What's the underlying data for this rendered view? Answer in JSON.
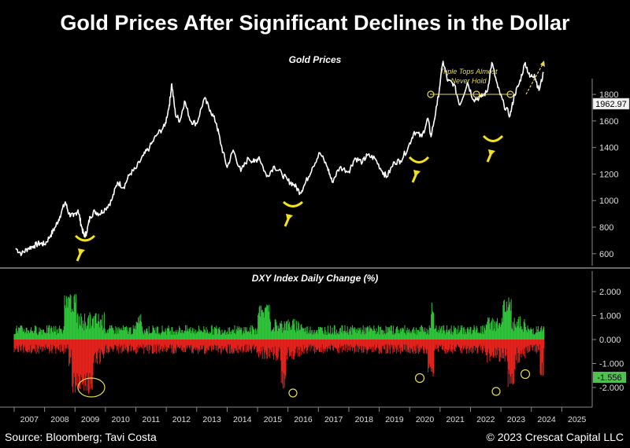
{
  "title": "Gold Prices After Significant Declines in the Dollar",
  "source": "Source: Bloomberg; Tavi Costa",
  "copyright": "© 2023 Crescat Capital LLC",
  "colors": {
    "gold_line": "#ffffff",
    "positive": "#2fc33a",
    "negative": "#e3221c",
    "annotation": "#e8d84a",
    "marker_arrow": "#f3e21b",
    "last_value_bg": "#4ec24e"
  },
  "chart_data": [
    {
      "type": "line",
      "title": "Gold Prices",
      "x_label_years": [
        "2007",
        "2008",
        "2009",
        "2010",
        "2011",
        "2012",
        "2013",
        "2014",
        "2015",
        "2016",
        "2017",
        "2018",
        "2019",
        "2020",
        "2021",
        "2022",
        "2023",
        "2024",
        "2025"
      ],
      "yticks": [
        600,
        800,
        1000,
        1200,
        1400,
        1600,
        1800
      ],
      "ylim": [
        510,
        1990
      ],
      "last_value_label": "1962.97",
      "points": [
        [
          2006.55,
          640
        ],
        [
          2006.75,
          600
        ],
        [
          2006.95,
          640
        ],
        [
          2007.15,
          660
        ],
        [
          2007.35,
          680
        ],
        [
          2007.5,
          670
        ],
        [
          2007.7,
          740
        ],
        [
          2007.85,
          800
        ],
        [
          2008.0,
          880
        ],
        [
          2008.18,
          990
        ],
        [
          2008.3,
          900
        ],
        [
          2008.45,
          880
        ],
        [
          2008.6,
          930
        ],
        [
          2008.7,
          820
        ],
        [
          2008.8,
          730
        ],
        [
          2008.88,
          760
        ],
        [
          2009.0,
          880
        ],
        [
          2009.15,
          920
        ],
        [
          2009.3,
          900
        ],
        [
          2009.5,
          940
        ],
        [
          2009.7,
          1000
        ],
        [
          2009.9,
          1140
        ],
        [
          2010.1,
          1100
        ],
        [
          2010.3,
          1200
        ],
        [
          2010.5,
          1240
        ],
        [
          2010.75,
          1340
        ],
        [
          2010.95,
          1400
        ],
        [
          2011.2,
          1500
        ],
        [
          2011.45,
          1560
        ],
        [
          2011.6,
          1720
        ],
        [
          2011.68,
          1880
        ],
        [
          2011.8,
          1650
        ],
        [
          2011.95,
          1600
        ],
        [
          2012.1,
          1750
        ],
        [
          2012.3,
          1600
        ],
        [
          2012.5,
          1580
        ],
        [
          2012.75,
          1770
        ],
        [
          2012.95,
          1680
        ],
        [
          2013.15,
          1580
        ],
        [
          2013.3,
          1420
        ],
        [
          2013.5,
          1250
        ],
        [
          2013.7,
          1380
        ],
        [
          2013.95,
          1220
        ],
        [
          2014.2,
          1320
        ],
        [
          2014.4,
          1290
        ],
        [
          2014.55,
          1330
        ],
        [
          2014.8,
          1180
        ],
        [
          2015.05,
          1260
        ],
        [
          2015.3,
          1200
        ],
        [
          2015.5,
          1150
        ],
        [
          2015.7,
          1120
        ],
        [
          2015.9,
          1060
        ],
        [
          2016.05,
          1120
        ],
        [
          2016.3,
          1250
        ],
        [
          2016.55,
          1360
        ],
        [
          2016.8,
          1250
        ],
        [
          2016.95,
          1140
        ],
        [
          2017.2,
          1250
        ],
        [
          2017.5,
          1220
        ],
        [
          2017.7,
          1320
        ],
        [
          2017.95,
          1290
        ],
        [
          2018.1,
          1340
        ],
        [
          2018.35,
          1320
        ],
        [
          2018.6,
          1220
        ],
        [
          2018.75,
          1180
        ],
        [
          2019.0,
          1290
        ],
        [
          2019.2,
          1300
        ],
        [
          2019.45,
          1400
        ],
        [
          2019.65,
          1520
        ],
        [
          2019.9,
          1480
        ],
        [
          2020.1,
          1620
        ],
        [
          2020.2,
          1480
        ],
        [
          2020.4,
          1720
        ],
        [
          2020.6,
          2050
        ],
        [
          2020.75,
          1900
        ],
        [
          2020.95,
          1880
        ],
        [
          2021.15,
          1720
        ],
        [
          2021.4,
          1890
        ],
        [
          2021.6,
          1760
        ],
        [
          2021.85,
          1780
        ],
        [
          2022.05,
          1820
        ],
        [
          2022.2,
          2040
        ],
        [
          2022.4,
          1850
        ],
        [
          2022.6,
          1720
        ],
        [
          2022.8,
          1640
        ],
        [
          2022.95,
          1800
        ],
        [
          2023.1,
          1880
        ],
        [
          2023.3,
          2040
        ],
        [
          2023.45,
          1930
        ],
        [
          2023.6,
          1950
        ],
        [
          2023.75,
          1830
        ],
        [
          2023.9,
          1960
        ]
      ],
      "annotations": {
        "triple_tops_text": [
          "Triple Tops Almost",
          "Never Hold"
        ]
      }
    },
    {
      "type": "bar",
      "title": "DXY Index Daily Change (%)",
      "yticks": [
        "2.000",
        "1.000",
        "0.000",
        "-1.000",
        "-2.000"
      ],
      "ytick_values": [
        2,
        1,
        0,
        -1,
        -2
      ],
      "ylim": [
        -2.6,
        2.6
      ],
      "last_value_label": "-1.556"
    }
  ]
}
